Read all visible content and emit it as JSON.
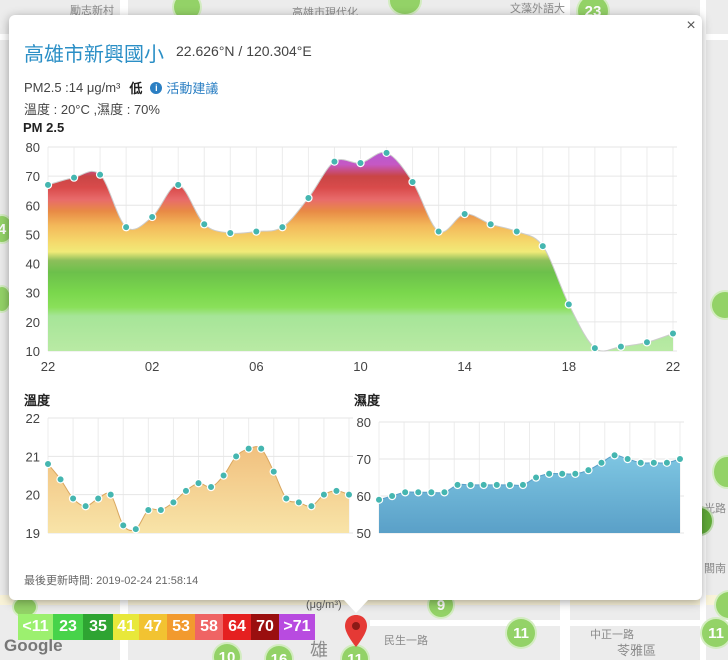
{
  "map": {
    "labels": [
      "勵志新村",
      "高雄市現代化",
      "文藻外語大",
      "中正一路",
      "民生一路",
      "苓雅區",
      "雄",
      "光路",
      "閣南"
    ],
    "markers": [
      "23",
      "9",
      "11",
      "11",
      "10",
      "16",
      "11",
      "4"
    ]
  },
  "station": {
    "name": "高雄市新興國小",
    "coordinates": "22.626°N / 120.304°E",
    "pm25_text": "PM2.5 :14 μg/m³",
    "level": "低",
    "info_icon": "i",
    "activity_label": "活動建議",
    "temp_humidity": "溫度 : 20°C ,濕度 : 70%",
    "close": "×"
  },
  "pm25_chart": {
    "type": "area",
    "title": "PM 2.5",
    "ylim": [
      10,
      80
    ],
    "yticks": [
      10,
      20,
      30,
      40,
      50,
      60,
      70,
      80
    ],
    "xticks": [
      "22",
      "02",
      "06",
      "10",
      "14",
      "18",
      "22"
    ],
    "values": [
      67,
      69.5,
      70.5,
      52.5,
      56,
      67,
      53.5,
      50.5,
      51,
      52.5,
      62.5,
      75,
      74.5,
      78,
      68,
      51,
      57,
      53.5,
      51,
      46,
      26,
      11,
      11.5,
      13,
      16
    ]
  },
  "temp_chart": {
    "type": "area",
    "title": "溫度",
    "ylim": [
      19,
      22
    ],
    "yticks": [
      19,
      20,
      21,
      22
    ],
    "values": [
      20.8,
      20.4,
      19.9,
      19.7,
      19.9,
      20,
      19.2,
      19.1,
      19.6,
      19.6,
      19.8,
      20.1,
      20.3,
      20.2,
      20.5,
      21,
      21.2,
      21.2,
      20.6,
      19.9,
      19.8,
      19.7,
      20,
      20.1,
      20
    ]
  },
  "humidity_chart": {
    "type": "area",
    "title": "濕度",
    "ylim": [
      50,
      80
    ],
    "yticks": [
      50,
      60,
      70,
      80
    ],
    "values": [
      59,
      60,
      61,
      61,
      61,
      61,
      63,
      63,
      63,
      63,
      63,
      63,
      65,
      66,
      66,
      66,
      67,
      69,
      71,
      70,
      69,
      69,
      69,
      70
    ]
  },
  "updated": "最後更新時間: 2019-02-24 21:58:14",
  "legend": {
    "unit": "(μg/m³)",
    "items": [
      {
        "label": "<11",
        "color": "#9cf06f"
      },
      {
        "label": "23",
        "color": "#47d34a"
      },
      {
        "label": "35",
        "color": "#2ea432"
      },
      {
        "label": "41",
        "color": "#e8e83a"
      },
      {
        "label": "47",
        "color": "#f2c331"
      },
      {
        "label": "53",
        "color": "#f29a2e"
      },
      {
        "label": "58",
        "color": "#ef6464"
      },
      {
        "label": "64",
        "color": "#e52020"
      },
      {
        "label": "70",
        "color": "#9a0f0f"
      },
      {
        "label": ">71",
        "color": "#b84be0"
      }
    ]
  },
  "google": "Google"
}
